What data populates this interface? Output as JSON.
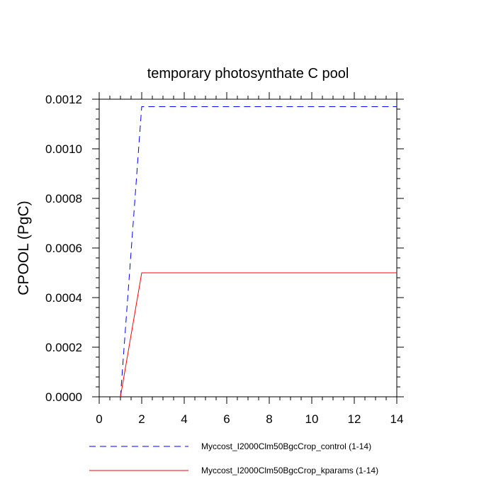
{
  "chart_data": {
    "type": "line",
    "title": "temporary photosynthate C pool",
    "xlabel": "",
    "ylabel": "CPOOL  (PgC)",
    "xlim": [
      0,
      14
    ],
    "ylim": [
      0,
      0.0012
    ],
    "x_ticks": [
      0,
      2,
      4,
      6,
      8,
      10,
      12,
      14
    ],
    "x_tick_labels": [
      "0",
      "2",
      "4",
      "6",
      "8",
      "10",
      "12",
      "14"
    ],
    "y_ticks": [
      0,
      0.0002,
      0.0004,
      0.0006,
      0.0008,
      0.001,
      0.0012
    ],
    "y_tick_labels": [
      "0.0000",
      "0.0002",
      "0.0004",
      "0.0006",
      "0.0008",
      "0.0010",
      "0.0012"
    ],
    "grid": false,
    "legend_position": "bottom",
    "series": [
      {
        "name": "Myccost_I2000Clm50BgcCrop_control (1-14)",
        "color": "#0000ff",
        "style": "dashed",
        "x": [
          1,
          2,
          3,
          4,
          5,
          6,
          7,
          8,
          9,
          10,
          11,
          12,
          13,
          14
        ],
        "values": [
          0.0,
          0.00117,
          0.00117,
          0.00117,
          0.00117,
          0.00117,
          0.00117,
          0.00117,
          0.00117,
          0.00117,
          0.00117,
          0.00117,
          0.00117,
          0.00117
        ]
      },
      {
        "name": "Myccost_I2000Clm50BgcCrop_kparams (1-14)",
        "color": "#ff0000",
        "style": "solid",
        "x": [
          1,
          2,
          3,
          4,
          5,
          6,
          7,
          8,
          9,
          10,
          11,
          12,
          13,
          14
        ],
        "values": [
          0.0,
          0.0005,
          0.0005,
          0.0005,
          0.0005,
          0.0005,
          0.0005,
          0.0005,
          0.0005,
          0.0005,
          0.0005,
          0.0005,
          0.0005,
          0.0005
        ]
      }
    ]
  }
}
